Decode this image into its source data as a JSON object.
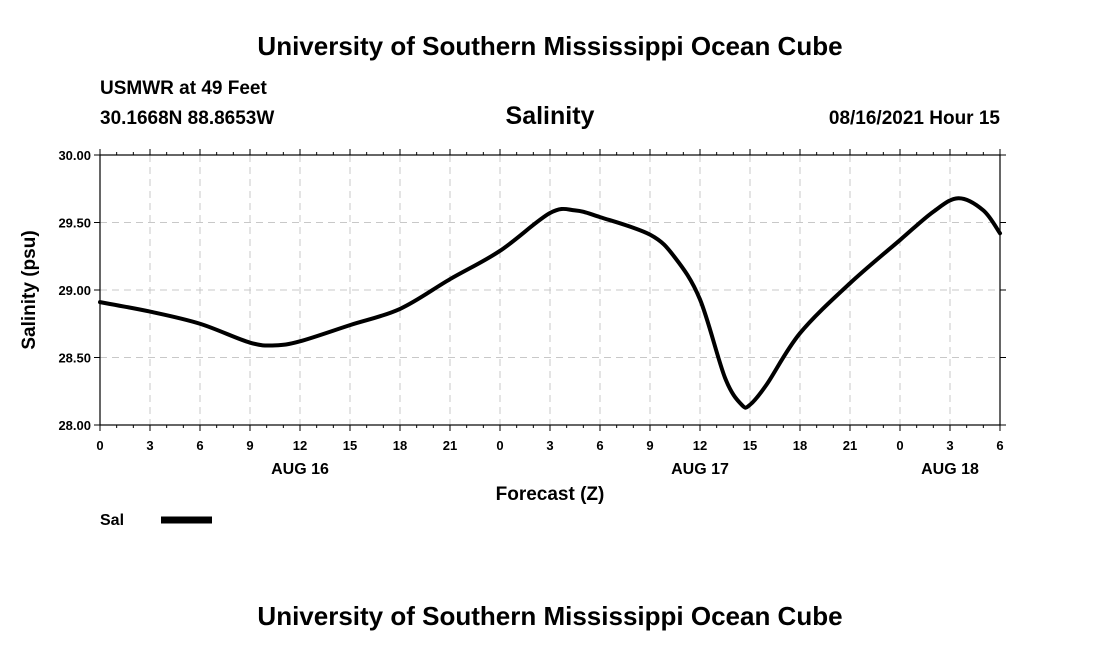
{
  "header": {
    "title_top": "University of Southern Mississippi Ocean Cube",
    "station": "USMWR at 49 Feet",
    "coords": "30.1668N  88.8653W",
    "variable": "Salinity",
    "datetime": "08/16/2021 Hour 15",
    "title_bottom": "University of Southern Mississippi Ocean Cube"
  },
  "legend": {
    "label": "Sal",
    "color": "#000000"
  },
  "chart_data": {
    "type": "line",
    "title": "Salinity",
    "xlabel": "Forecast (Z)",
    "ylabel": "Salinity (psu)",
    "ylim": [
      28.0,
      30.0
    ],
    "y_ticks": [
      "28.00",
      "28.50",
      "29.00",
      "29.50",
      "30.00"
    ],
    "xlim": [
      0,
      54
    ],
    "x_ticks": [
      "0",
      "3",
      "6",
      "9",
      "12",
      "15",
      "18",
      "21",
      "0",
      "3",
      "6",
      "9",
      "12",
      "15",
      "18",
      "21",
      "0",
      "3",
      "6"
    ],
    "day_labels": [
      {
        "label": "AUG 16",
        "x": 12
      },
      {
        "label": "AUG 17",
        "x": 36
      },
      {
        "label": "AUG 18",
        "x": 51
      }
    ],
    "grid": true,
    "series": [
      {
        "name": "Sal",
        "color": "#000000",
        "x": [
          0,
          3,
          6,
          9,
          10.5,
          12,
          15,
          18,
          21,
          24,
          27,
          28.5,
          30,
          33,
          34.5,
          36,
          37.5,
          38.5,
          39,
          40,
          42,
          45,
          48,
          50,
          51.5,
          53,
          54
        ],
        "y": [
          28.91,
          28.84,
          28.75,
          28.61,
          28.59,
          28.62,
          28.74,
          28.86,
          29.08,
          29.29,
          29.57,
          29.59,
          29.54,
          29.41,
          29.24,
          28.93,
          28.35,
          28.15,
          28.15,
          28.3,
          28.68,
          29.05,
          29.37,
          29.58,
          29.68,
          29.59,
          29.42
        ]
      }
    ]
  }
}
